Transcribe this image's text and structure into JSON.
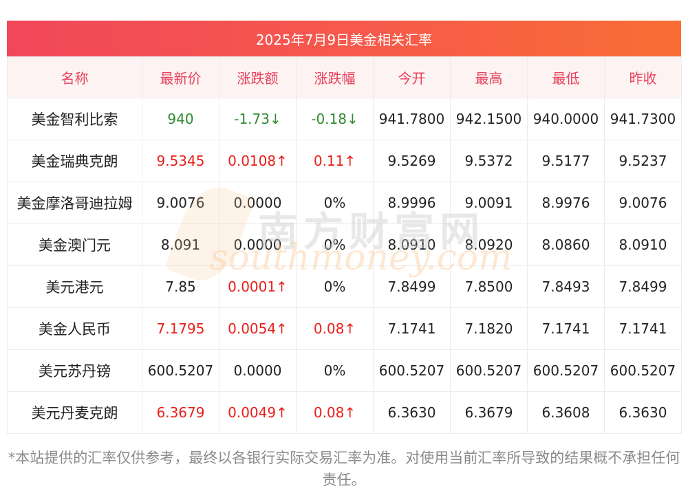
{
  "title": "2025年7月9日美金相关汇率",
  "headers": [
    "名称",
    "最新价",
    "涨跌额",
    "涨跌幅",
    "今开",
    "最高",
    "最低",
    "昨收"
  ],
  "rows": [
    {
      "name": "美金智利比索",
      "latest": "940",
      "change": "-1.73↓",
      "pct": "-0.18↓",
      "open": "941.7800",
      "high": "942.1500",
      "low": "940.0000",
      "prev": "941.7300",
      "trend": "down"
    },
    {
      "name": "美金瑞典克朗",
      "latest": "9.5345",
      "change": "0.0108↑",
      "pct": "0.11↑",
      "open": "9.5269",
      "high": "9.5372",
      "low": "9.5177",
      "prev": "9.5237",
      "trend": "up"
    },
    {
      "name": "美金摩洛哥迪拉姆",
      "latest": "9.0076",
      "change": "0.0000",
      "pct": "0%",
      "open": "8.9996",
      "high": "9.0091",
      "low": "8.9976",
      "prev": "9.0076",
      "trend": "flat"
    },
    {
      "name": "美金澳门元",
      "latest": "8.091",
      "change": "0.0000",
      "pct": "0%",
      "open": "8.0910",
      "high": "8.0920",
      "low": "8.0860",
      "prev": "8.0910",
      "trend": "flat"
    },
    {
      "name": "美元港元",
      "latest": "7.85",
      "change": "0.0001↑",
      "pct": "0%",
      "open": "7.8499",
      "high": "7.8500",
      "low": "7.8493",
      "prev": "7.8499",
      "trend": "up-change-only"
    },
    {
      "name": "美金人民币",
      "latest": "7.1795",
      "change": "0.0054↑",
      "pct": "0.08↑",
      "open": "7.1741",
      "high": "7.1820",
      "low": "7.1741",
      "prev": "7.1741",
      "trend": "up"
    },
    {
      "name": "美元苏丹镑",
      "latest": "600.5207",
      "change": "0.0000",
      "pct": "0%",
      "open": "600.5207",
      "high": "600.5207",
      "low": "600.5207",
      "prev": "600.5207",
      "trend": "flat"
    },
    {
      "name": "美元丹麦克朗",
      "latest": "6.3679",
      "change": "0.0049↑",
      "pct": "0.08↑",
      "open": "6.3630",
      "high": "6.3679",
      "low": "6.3608",
      "prev": "6.3630",
      "trend": "up"
    }
  ],
  "colors": {
    "up": "#e8201a",
    "down": "#2e8b2e",
    "header_text": "#e8425a",
    "title_bar": "#f2475a"
  },
  "watermark": {
    "cn": "南方财富网",
    "en": "southmoney.com"
  },
  "footnote": "*本站提供的汇率仅供参考，最终以各银行实际交易汇率为准。对使用当前汇率所导致的结果概不承担任何责任。"
}
